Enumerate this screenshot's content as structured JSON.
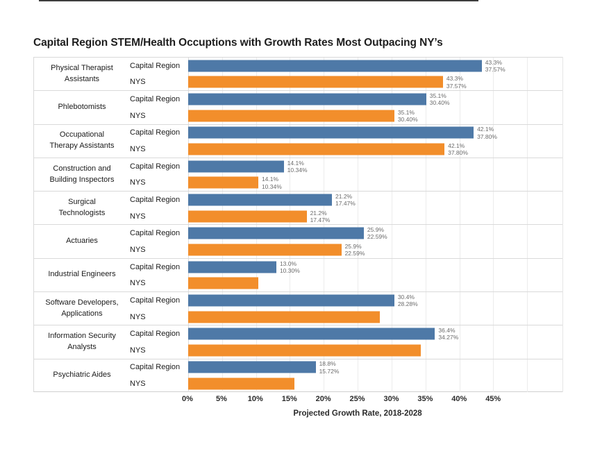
{
  "title": "Capital Region STEM/Health Occuptions with Growth Rates Most Outpacing NY’s",
  "chart_data": {
    "type": "bar",
    "orientation": "horizontal",
    "title": "Capital Region STEM/Health Occuptions with Growth Rates Most Outpacing NY’s",
    "xlabel": "Projected Growth Rate, 2018-2028",
    "ylabel": "",
    "xlim": [
      0,
      55.2
    ],
    "grid": true,
    "grid_values": [
      0,
      5,
      10,
      15,
      20,
      25,
      30,
      35,
      40,
      45,
      50
    ],
    "x_tick_values": [
      0,
      5,
      10,
      15,
      20,
      25,
      30,
      35,
      40,
      45
    ],
    "x_ticks": [
      "0%",
      "5%",
      "10%",
      "15%",
      "20%",
      "25%",
      "30%",
      "35%",
      "40%",
      "45%"
    ],
    "series_labels": [
      "Capital Region",
      "NYS"
    ],
    "colors": {
      "capital_region": "#4e79a7",
      "nys": "#f28e2b"
    },
    "groups": [
      {
        "occupation": "Physical Therapist Assistants",
        "capital_region": 43.3,
        "nys": 37.57,
        "label_line1": "43.3%",
        "label_line2": "37.57%",
        "nys_bar_labeled": true
      },
      {
        "occupation": "Phlebotomists",
        "capital_region": 35.1,
        "nys": 30.4,
        "label_line1": "35.1%",
        "label_line2": "30.40%",
        "nys_bar_labeled": true
      },
      {
        "occupation": "Occupational Therapy Assistants",
        "capital_region": 42.1,
        "nys": 37.8,
        "label_line1": "42.1%",
        "label_line2": "37.80%",
        "nys_bar_labeled": true
      },
      {
        "occupation": "Construction and Building Inspectors",
        "capital_region": 14.1,
        "nys": 10.34,
        "label_line1": "14.1%",
        "label_line2": "10.34%",
        "nys_bar_labeled": true
      },
      {
        "occupation": "Surgical Technologists",
        "capital_region": 21.2,
        "nys": 17.47,
        "label_line1": "21.2%",
        "label_line2": "17.47%",
        "nys_bar_labeled": true
      },
      {
        "occupation": "Actuaries",
        "capital_region": 25.9,
        "nys": 22.59,
        "label_line1": "25.9%",
        "label_line2": "22.59%",
        "nys_bar_labeled": true
      },
      {
        "occupation": "Industrial Engineers",
        "capital_region": 13.0,
        "nys": 10.3,
        "label_line1": "13.0%",
        "label_line2": "10.30%",
        "nys_bar_labeled": false
      },
      {
        "occupation": "Software Developers, Applications",
        "capital_region": 30.4,
        "nys": 28.28,
        "label_line1": "30.4%",
        "label_line2": "28.28%",
        "nys_bar_labeled": false
      },
      {
        "occupation": "Information Security Analysts",
        "capital_region": 36.4,
        "nys": 34.27,
        "label_line1": "36.4%",
        "label_line2": "34.27%",
        "nys_bar_labeled": false
      },
      {
        "occupation": "Psychiatric Aides",
        "capital_region": 18.8,
        "nys": 15.72,
        "label_line1": "18.8%",
        "label_line2": "15.72%",
        "nys_bar_labeled": false
      }
    ]
  }
}
